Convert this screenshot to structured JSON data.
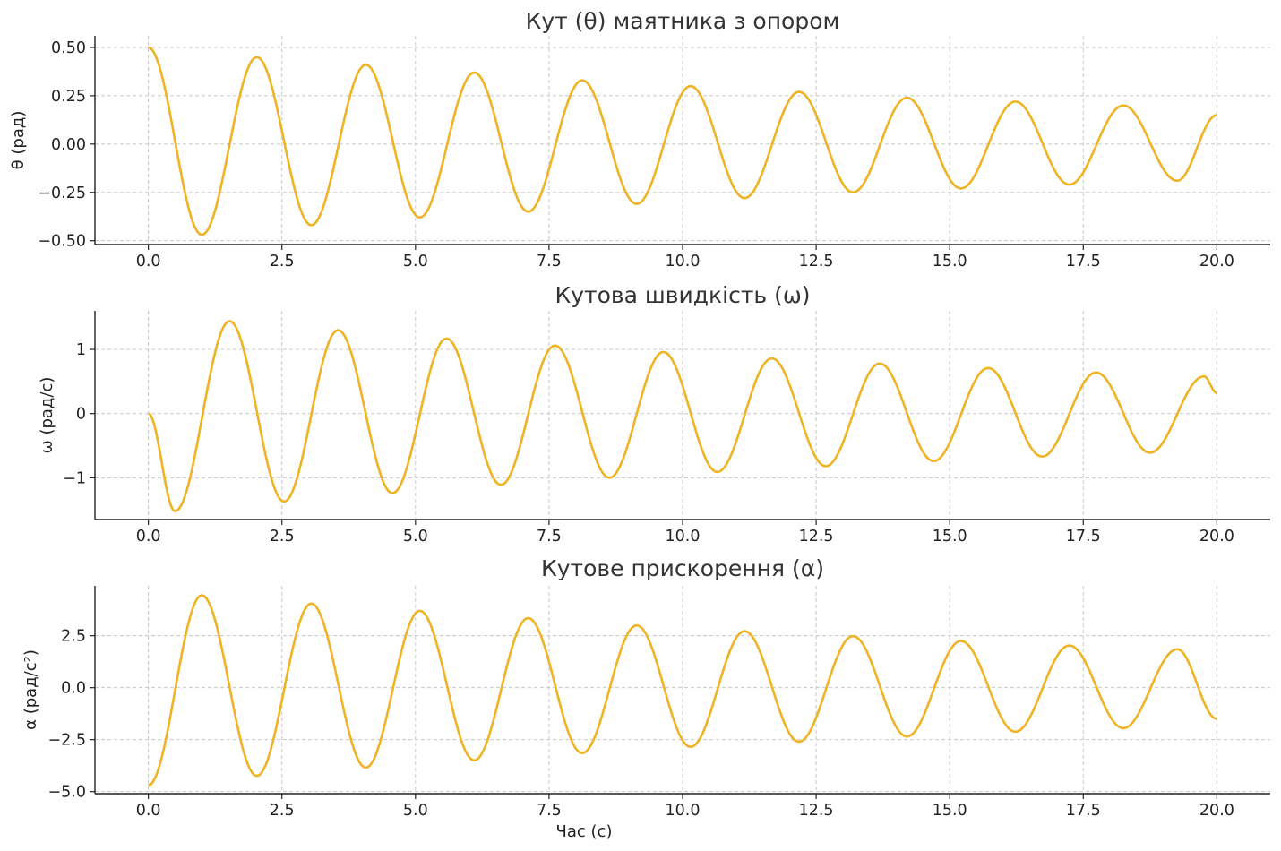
{
  "chart_data": [
    {
      "type": "line",
      "title": "Кут (θ) маятника з опором",
      "xlabel": "",
      "ylabel": "θ (рад)",
      "xlim": [
        -1.0,
        21.0
      ],
      "ylim": [
        -0.52,
        0.56
      ],
      "xticks": [
        "0.0",
        "2.5",
        "5.0",
        "7.5",
        "10.0",
        "12.5",
        "15.0",
        "17.5",
        "20.0"
      ],
      "yticks": [
        "−0.50",
        "−0.25",
        "0.00",
        "0.25",
        "0.50"
      ],
      "ytick_values": [
        -0.5,
        -0.25,
        0.0,
        0.25,
        0.5
      ],
      "grid": true,
      "color": "#f0b323",
      "series": [
        {
          "x": [
            0.0,
            1.0,
            2.03,
            3.05,
            4.07,
            5.08,
            6.1,
            7.11,
            8.12,
            9.14,
            10.15,
            11.16,
            12.18,
            13.19,
            14.2,
            15.21,
            16.23,
            17.24,
            18.25,
            19.26,
            20.0
          ],
          "values": [
            0.5,
            -0.47,
            0.45,
            -0.42,
            0.41,
            -0.38,
            0.37,
            -0.35,
            0.33,
            -0.31,
            0.3,
            -0.28,
            0.27,
            -0.25,
            0.24,
            -0.23,
            0.22,
            -0.21,
            0.2,
            -0.19,
            0.15
          ]
        }
      ]
    },
    {
      "type": "line",
      "title": "Кутова швидкість (ω)",
      "xlabel": "",
      "ylabel": "ω (рад/с)",
      "xlim": [
        -1.0,
        21.0
      ],
      "ylim": [
        -1.65,
        1.6
      ],
      "xticks": [
        "0.0",
        "2.5",
        "5.0",
        "7.5",
        "10.0",
        "12.5",
        "15.0",
        "17.5",
        "20.0"
      ],
      "yticks": [
        "−1",
        "0",
        "1"
      ],
      "ytick_values": [
        -1,
        0,
        1
      ],
      "grid": true,
      "color": "#f0b323",
      "series": [
        {
          "x": [
            0.0,
            0.5,
            1.52,
            2.54,
            3.55,
            4.57,
            5.58,
            6.6,
            7.61,
            8.63,
            9.64,
            10.65,
            11.67,
            12.68,
            13.69,
            14.7,
            15.72,
            16.73,
            17.74,
            18.75,
            19.76,
            20.0
          ],
          "values": [
            0.0,
            -1.52,
            1.44,
            -1.37,
            1.3,
            -1.24,
            1.17,
            -1.11,
            1.06,
            -1.0,
            0.96,
            -0.91,
            0.86,
            -0.82,
            0.78,
            -0.74,
            0.71,
            -0.67,
            0.64,
            -0.61,
            0.58,
            0.32
          ]
        }
      ]
    },
    {
      "type": "line",
      "title": "Кутове прискорення (α)",
      "xlabel": "Час (с)",
      "ylabel": "α (рад/с²)",
      "xlim": [
        -1.0,
        21.0
      ],
      "ylim": [
        -5.1,
        4.9
      ],
      "xticks": [
        "0.0",
        "2.5",
        "5.0",
        "7.5",
        "10.0",
        "12.5",
        "15.0",
        "17.5",
        "20.0"
      ],
      "yticks": [
        "−5.0",
        "−2.5",
        "0.0",
        "2.5"
      ],
      "ytick_values": [
        -5.0,
        -2.5,
        0.0,
        2.5
      ],
      "grid": true,
      "color": "#f0b323",
      "series": [
        {
          "x": [
            0.0,
            1.0,
            2.03,
            3.05,
            4.07,
            5.08,
            6.1,
            7.11,
            8.12,
            9.14,
            10.15,
            11.16,
            12.18,
            13.19,
            14.2,
            15.21,
            16.23,
            17.24,
            18.25,
            19.26,
            20.0
          ],
          "values": [
            -4.7,
            4.45,
            -4.25,
            4.05,
            -3.85,
            3.7,
            -3.5,
            3.35,
            -3.15,
            3.0,
            -2.85,
            2.72,
            -2.6,
            2.48,
            -2.35,
            2.25,
            -2.12,
            2.03,
            -1.95,
            1.85,
            -1.5
          ]
        }
      ]
    }
  ]
}
